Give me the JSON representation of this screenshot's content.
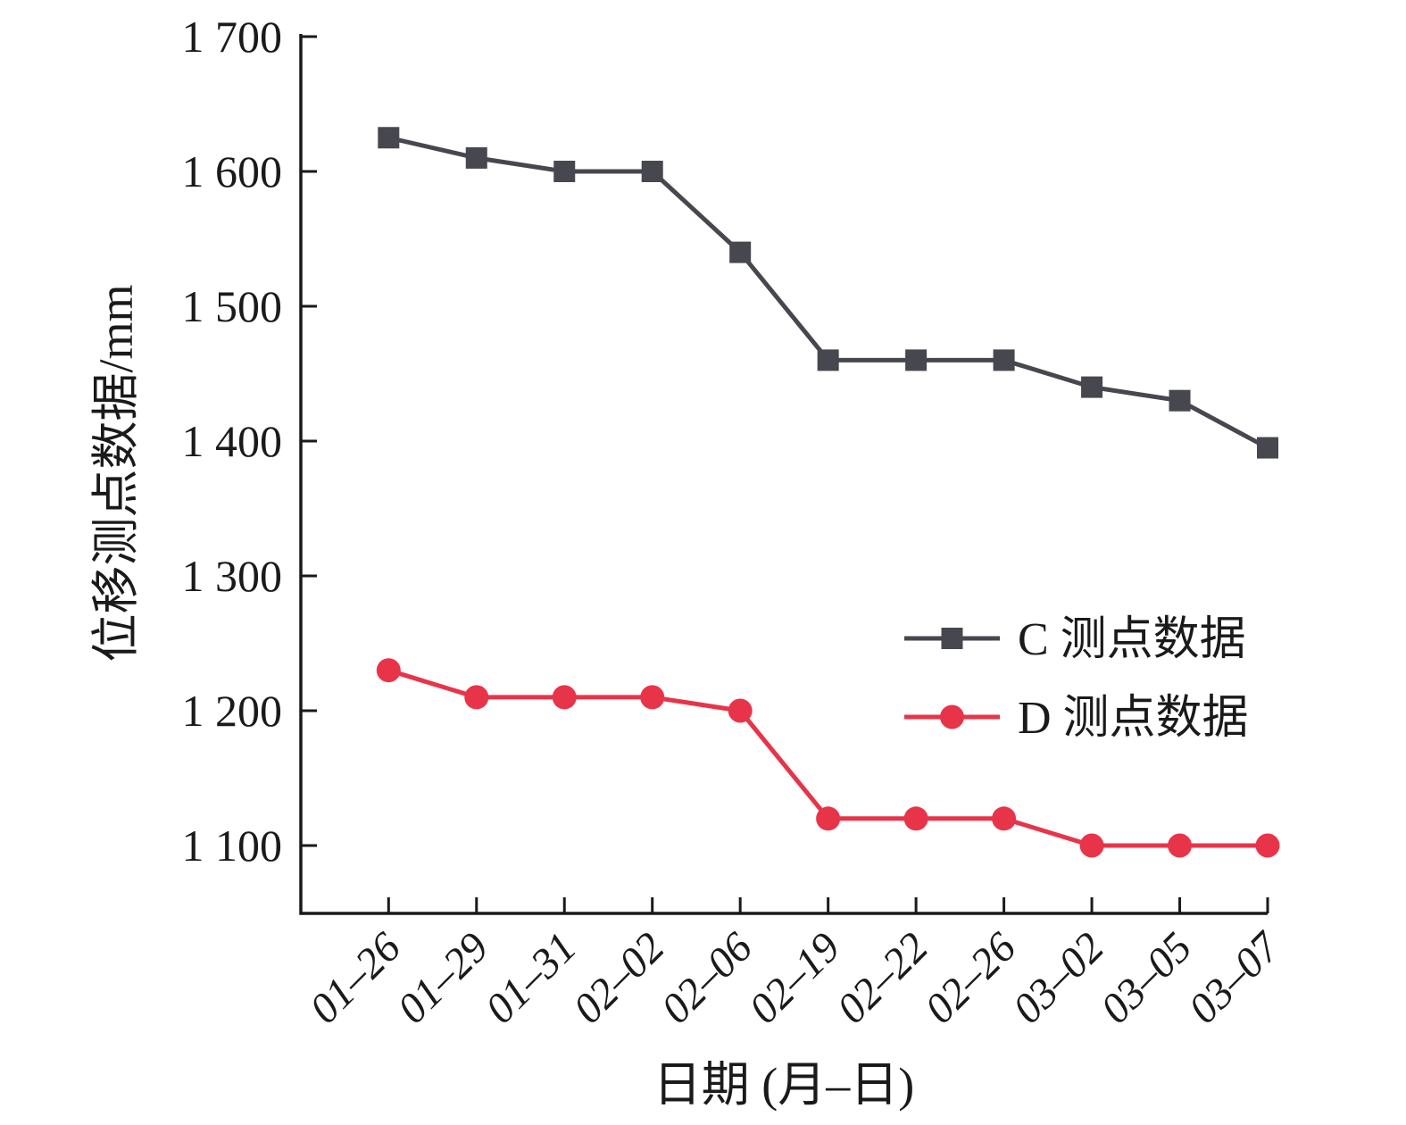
{
  "chart_data": {
    "type": "line",
    "title": "",
    "xlabel": "日期 (月–日)",
    "ylabel": "位移测点数据/mm",
    "categories": [
      "01–26",
      "01–29",
      "01–31",
      "02–02",
      "02–06",
      "02–19",
      "02–22",
      "02–26",
      "03–02",
      "03–05",
      "03–07"
    ],
    "series": [
      {
        "name": "C 测点数据",
        "marker": "square",
        "color": "#47474F",
        "values": [
          1625,
          1610,
          1600,
          1600,
          1540,
          1460,
          1460,
          1460,
          1440,
          1430,
          1395
        ]
      },
      {
        "name": "D 测点数据",
        "marker": "circle",
        "color": "#E83449",
        "values": [
          1230,
          1210,
          1210,
          1210,
          1200,
          1120,
          1120,
          1120,
          1100,
          1100,
          1100
        ]
      }
    ],
    "y_ticks": [
      {
        "value": 1700,
        "label": "1 700"
      },
      {
        "value": 1600,
        "label": "1 600"
      },
      {
        "value": 1500,
        "label": "1 500"
      },
      {
        "value": 1400,
        "label": "1 400"
      },
      {
        "value": 1300,
        "label": "1 300"
      },
      {
        "value": 1200,
        "label": "1 200"
      },
      {
        "value": 1100,
        "label": "1 100"
      }
    ],
    "ylim": [
      1050,
      1700
    ],
    "grid": false,
    "legend_position": "center-right",
    "axis_color": "#1A1A1A",
    "background": "#FFFFFF"
  }
}
